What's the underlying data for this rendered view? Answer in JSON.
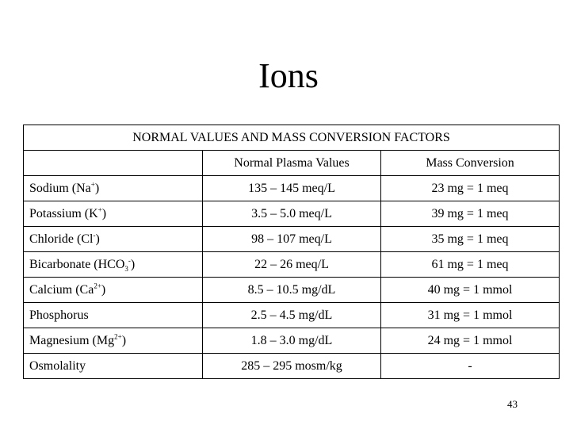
{
  "title": "Ions",
  "table": {
    "header": "NORMAL VALUES AND MASS CONVERSION FACTORS",
    "columns": [
      "",
      "Normal Plasma Values",
      "Mass Conversion"
    ],
    "rows": [
      {
        "ion": "Sodium (Na",
        "sup": "+",
        "sub": "",
        "tail": ")",
        "normal": "135 – 145 meq/L",
        "conversion": "23 mg = 1 meq"
      },
      {
        "ion": "Potassium (K",
        "sup": "+",
        "sub": "",
        "tail": ")",
        "normal": "3.5 – 5.0 meq/L",
        "conversion": "39 mg = 1 meq"
      },
      {
        "ion": "Chloride (Cl",
        "sup": "-",
        "sub": "",
        "tail": ")",
        "normal": "98 – 107 meq/L",
        "conversion": "35 mg = 1 meq"
      },
      {
        "ion": "Bicarbonate (HCO",
        "sup": "-",
        "sub": "3",
        "tail": ")",
        "normal": "22 – 26 meq/L",
        "conversion": "61 mg = 1 meq"
      },
      {
        "ion": "Calcium (Ca",
        "sup": "2+",
        "sub": "",
        "tail": ")",
        "normal": "8.5 – 10.5 mg/dL",
        "conversion": "40 mg = 1 mmol"
      },
      {
        "ion": "Phosphorus",
        "sup": "",
        "sub": "",
        "tail": "",
        "normal": "2.5 – 4.5 mg/dL",
        "conversion": "31 mg = 1 mmol"
      },
      {
        "ion": "Magnesium (Mg",
        "sup": "2+",
        "sub": "",
        "tail": ")",
        "normal": "1.8 – 3.0 mg/dL",
        "conversion": "24 mg = 1 mmol"
      },
      {
        "ion": "Osmolality",
        "sup": "",
        "sub": "",
        "tail": "",
        "normal": "285 – 295 mosm/kg",
        "conversion": "-"
      }
    ]
  },
  "page_number": "43"
}
